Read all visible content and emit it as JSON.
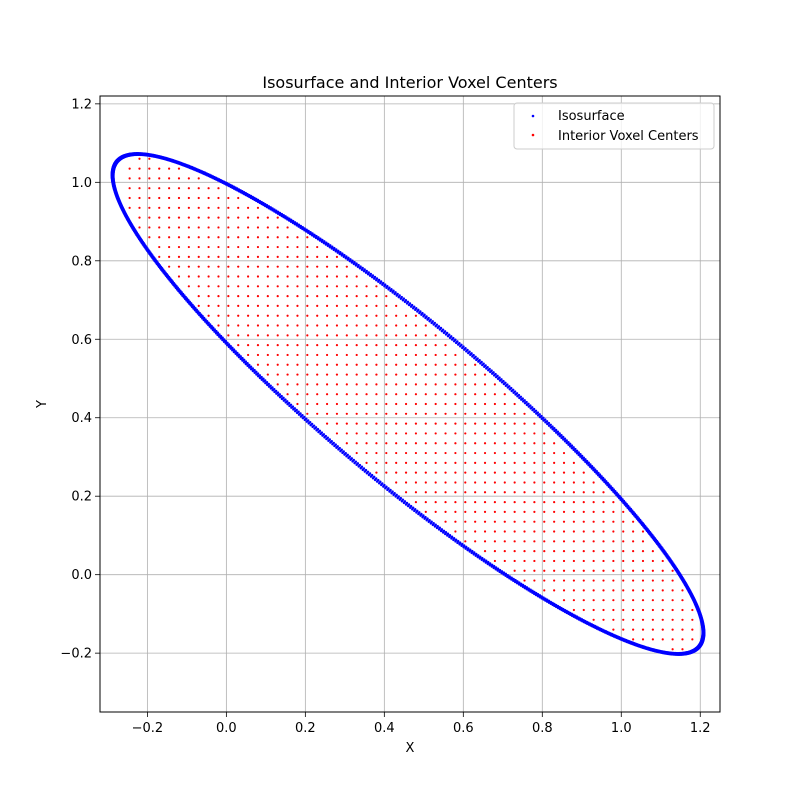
{
  "chart_data": {
    "type": "scatter",
    "title": "Isosurface and Interior Voxel Centers",
    "xlabel": "X",
    "ylabel": "Y",
    "xlim": [
      -0.32,
      1.25
    ],
    "ylim": [
      -0.35,
      1.22
    ],
    "xticks": [
      -0.2,
      0.0,
      0.2,
      0.4,
      0.6,
      0.8,
      1.0,
      1.2
    ],
    "yticks": [
      -0.2,
      0.0,
      0.2,
      0.4,
      0.6,
      0.8,
      1.0,
      1.2
    ],
    "xtick_labels": [
      "−0.2",
      "0.0",
      "0.2",
      "0.4",
      "0.6",
      "0.8",
      "1.0",
      "1.2"
    ],
    "ytick_labels": [
      "−0.2",
      "0.0",
      "0.2",
      "0.4",
      "0.6",
      "0.8",
      "1.0",
      "1.2"
    ],
    "grid": true,
    "legend_position": "top-right",
    "series": [
      {
        "name": "Isosurface",
        "color": "#0000ff",
        "shape": "ellipse",
        "center": [
          0.46,
          0.435
        ],
        "semi_major": 0.962,
        "semi_minor": 0.2,
        "rotation_deg": -40
      },
      {
        "name": "Interior Voxel Centers",
        "color": "#ff0000",
        "shape": "grid-fill",
        "grid_spacing": 0.025,
        "x_range": [
          -0.245,
          1.18
        ],
        "y_range": [
          -0.24,
          1.115
        ]
      }
    ]
  }
}
